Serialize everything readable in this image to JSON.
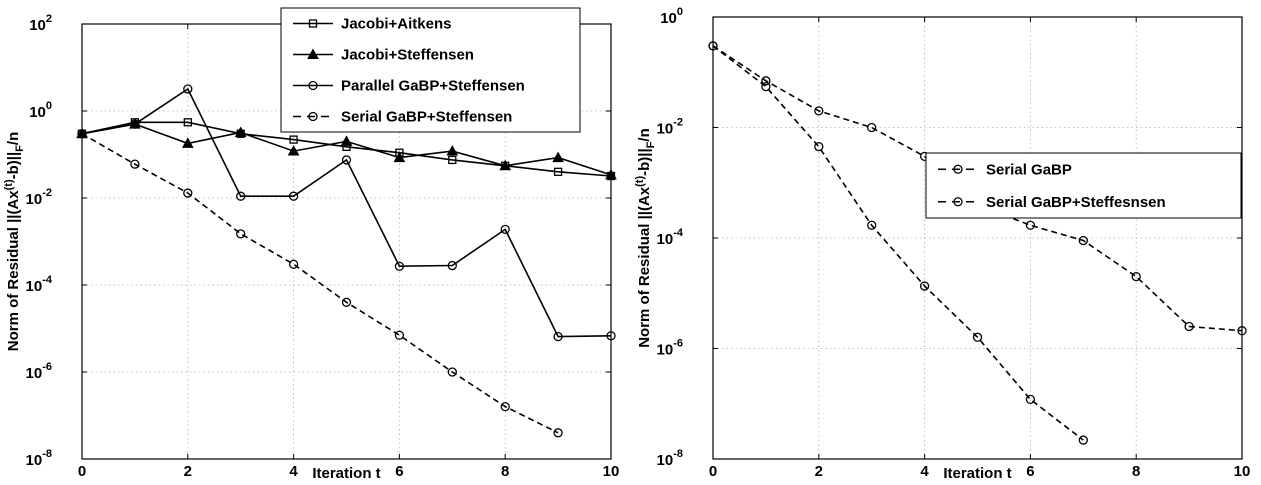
{
  "chart_data": [
    {
      "type": "line",
      "title": "",
      "xlabel": "Iteration t",
      "ylabel_parts": [
        "Norm of Residual ||(Ax",
        "(t)",
        "-b)||",
        "F",
        "/n"
      ],
      "xlim": [
        0,
        10
      ],
      "ylim": [
        1e-08,
        100
      ],
      "yscale": "log",
      "grid": true,
      "legend_position": "top-right",
      "x_ticks": [
        "0",
        "2",
        "4",
        "6",
        "8",
        "10"
      ],
      "y_ticks": [
        {
          "base": "10",
          "exp": "-8",
          "value": 1e-08
        },
        {
          "base": "10",
          "exp": "-6",
          "value": 1e-06
        },
        {
          "base": "10",
          "exp": "-4",
          "value": 0.0001
        },
        {
          "base": "10",
          "exp": "-2",
          "value": 0.01
        },
        {
          "base": "10",
          "exp": "0",
          "value": 1
        },
        {
          "base": "10",
          "exp": "2",
          "value": 100
        }
      ],
      "series": [
        {
          "name": "Jacobi+Aitkens",
          "marker": "square",
          "dash": "solid",
          "x": [
            0,
            1,
            2,
            3,
            4,
            5,
            6,
            7,
            8,
            9,
            10
          ],
          "y": [
            0.3,
            0.55,
            0.55,
            0.3,
            0.22,
            0.15,
            0.11,
            0.075,
            0.055,
            0.04,
            0.032
          ]
        },
        {
          "name": "Jacobi+Steffensen",
          "marker": "triangle",
          "dash": "solid",
          "x": [
            0,
            1,
            2,
            3,
            4,
            5,
            6,
            7,
            8,
            9,
            10
          ],
          "y": [
            0.3,
            0.5,
            0.18,
            0.32,
            0.12,
            0.2,
            0.085,
            0.12,
            0.055,
            0.085,
            0.034
          ]
        },
        {
          "name": "Parallel GaBP+Steffensen",
          "marker": "circle",
          "dash": "solid",
          "x": [
            0,
            1,
            2,
            3,
            4,
            5,
            6,
            7,
            8,
            9,
            10
          ],
          "y": [
            0.3,
            0.5,
            3.2,
            0.011,
            0.011,
            0.075,
            0.00027,
            0.00028,
            0.0019,
            6.5e-06,
            6.8e-06
          ]
        },
        {
          "name": "Serial GaBP+Steffensen",
          "marker": "circle",
          "dash": "dashed",
          "x": [
            0,
            1,
            2,
            3,
            4,
            5,
            6,
            7,
            8,
            9
          ],
          "y": [
            0.3,
            0.06,
            0.013,
            0.0015,
            0.0003,
            4e-05,
            7e-06,
            1e-06,
            1.6e-07,
            4e-08
          ]
        }
      ]
    },
    {
      "type": "line",
      "title": "",
      "xlabel": "Iteration t",
      "ylabel_parts": [
        "Norm of Residual ||(Ax",
        "(t)",
        "-b)||",
        "F",
        "/n"
      ],
      "xlim": [
        0,
        10
      ],
      "ylim": [
        1e-08,
        1
      ],
      "yscale": "log",
      "grid": true,
      "legend_position": "top-right",
      "x_ticks": [
        "0",
        "2",
        "4",
        "6",
        "8",
        "10"
      ],
      "y_ticks": [
        {
          "base": "10",
          "exp": "-8",
          "value": 1e-08
        },
        {
          "base": "10",
          "exp": "-6",
          "value": 1e-06
        },
        {
          "base": "10",
          "exp": "-4",
          "value": 0.0001
        },
        {
          "base": "10",
          "exp": "-2",
          "value": 0.01
        },
        {
          "base": "10",
          "exp": "0",
          "value": 1
        }
      ],
      "series": [
        {
          "name": "Serial GaBP",
          "marker": "circle",
          "dash": "dashed",
          "x": [
            0,
            1,
            2,
            3,
            4,
            5,
            6,
            7,
            8,
            9,
            10
          ],
          "y": [
            0.3,
            0.07,
            0.02,
            0.01,
            0.003,
            0.0004,
            0.00017,
            9e-05,
            2e-05,
            2.5e-06,
            2.1e-06
          ]
        },
        {
          "name": "Serial GaBP+Steffesnsen",
          "marker": "circle",
          "dash": "dashed",
          "x": [
            0,
            1,
            2,
            3,
            4,
            5,
            6,
            7
          ],
          "y": [
            0.3,
            0.055,
            0.0045,
            0.00017,
            1.35e-05,
            1.6e-06,
            1.2e-07,
            2.2e-08
          ]
        }
      ]
    }
  ]
}
